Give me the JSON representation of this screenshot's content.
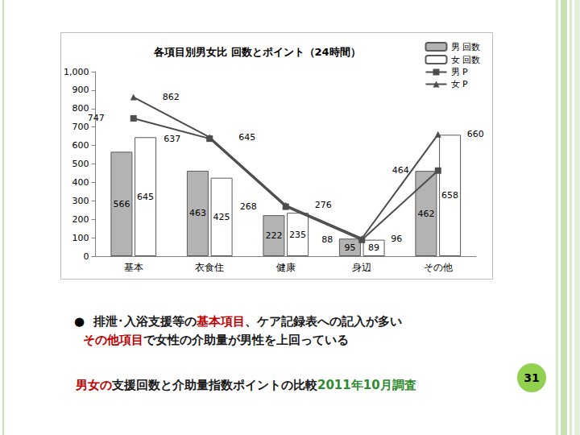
{
  "chart_data": {
    "type": "bar",
    "title": "各項目別男女比 回数とポイント（24時間）",
    "categories": [
      "基本",
      "衣食住",
      "健康",
      "身辺",
      "その他"
    ],
    "series": [
      {
        "name": "男 回数",
        "type": "bar",
        "color": "#b3b3b3",
        "values": [
          566,
          463,
          222,
          95,
          462
        ]
      },
      {
        "name": "女 回数",
        "type": "bar",
        "color": "#ffffff",
        "values": [
          645,
          425,
          235,
          89,
          658
        ]
      },
      {
        "name": "男 P",
        "type": "line",
        "color": "#4d4d4d",
        "marker": "square",
        "values": [
          747,
          637,
          268,
          88,
          464
        ]
      },
      {
        "name": "女 P",
        "type": "line",
        "color": "#4d4d4d",
        "marker": "triangle",
        "values": [
          862,
          645,
          276,
          96,
          660
        ]
      }
    ],
    "ylim": [
      0,
      1000
    ],
    "yticks": [
      0,
      100,
      200,
      300,
      400,
      500,
      600,
      700,
      800,
      900,
      1000
    ],
    "grid": false,
    "legend": "top-right",
    "data_labels": true
  },
  "slide": {
    "bullet": "●",
    "bullet_lines": [
      [
        {
          "text": "排泄･入浴支援等の",
          "color": "#1a1a1a"
        },
        {
          "text": "基本項目",
          "color": "#c00000"
        },
        {
          "text": "、ケア記録表への記入が多い",
          "color": "#1a1a1a"
        }
      ],
      [
        {
          "text": "その他項目",
          "color": "#c00000"
        },
        {
          "text": "で女性の介助量が男性を上回っている",
          "color": "#1a1a1a"
        }
      ]
    ],
    "footer": [
      {
        "text": "男女の",
        "color": "#c00000"
      },
      {
        "text": "支援回数と介助量指数ポイントの比較",
        "color": "#1a1a1a"
      },
      {
        "text": "2011年10月調査",
        "color": "#2e8b2e"
      }
    ],
    "page_number": 31
  }
}
